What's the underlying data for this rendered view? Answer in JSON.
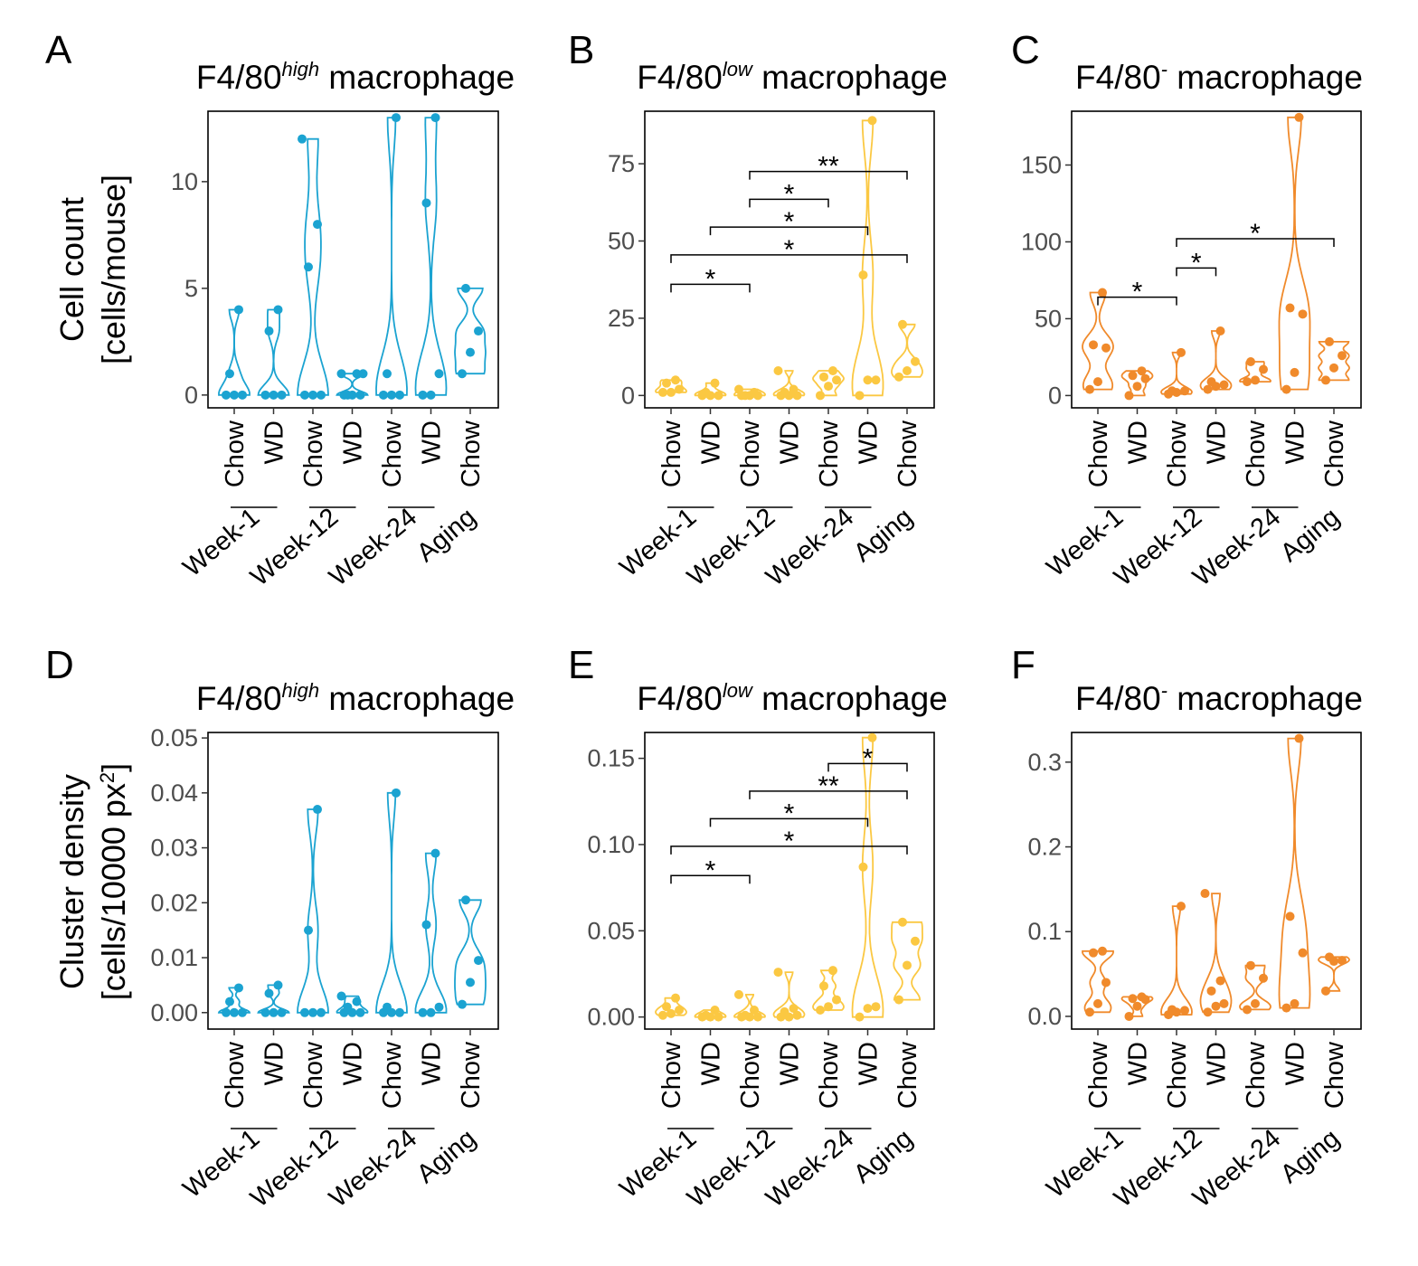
{
  "colors": {
    "A": "#1ba3d1",
    "B": "#fbc842",
    "C": "#f08a2b"
  },
  "x_categories": [
    "Chow",
    "WD",
    "Chow",
    "WD",
    "Chow",
    "WD",
    "Chow"
  ],
  "groups": [
    {
      "label": "Week-1",
      "from": 0,
      "to": 1
    },
    {
      "label": "Week-12",
      "from": 2,
      "to": 3
    },
    {
      "label": "Week-24",
      "from": 4,
      "to": 5
    },
    {
      "label": "Aging",
      "from": 6,
      "to": 6
    }
  ],
  "y_titles": {
    "count": [
      "Cell count",
      "[cells/mouse]"
    ],
    "density_line1": "Cluster density",
    "density_line2_prefix": "[cells/10000 px",
    "density_line2_sup": "2",
    "density_line2_suffix": "]"
  },
  "chart_data": [
    {
      "panel": "A",
      "type": "violin",
      "color_key": "A",
      "title": {
        "prefix": "F4/80",
        "sup": "high",
        "suffix": " macrophage"
      },
      "ylim": [
        -0.6,
        13.3
      ],
      "yticks": [
        0,
        5,
        10
      ],
      "ytick_labels": [
        "0",
        "5",
        "10"
      ],
      "series": [
        {
          "category": "Chow",
          "group": "Week-1",
          "points": [
            0,
            0,
            0,
            1,
            4
          ]
        },
        {
          "category": "WD",
          "group": "Week-1",
          "points": [
            0,
            0,
            0,
            3,
            4
          ]
        },
        {
          "category": "Chow",
          "group": "Week-12",
          "points": [
            0,
            0,
            0,
            6,
            8,
            12
          ]
        },
        {
          "category": "WD",
          "group": "Week-12",
          "points": [
            0,
            0,
            0,
            0,
            1,
            1,
            1
          ]
        },
        {
          "category": "Chow",
          "group": "Week-24",
          "points": [
            0,
            0,
            0,
            1,
            13
          ]
        },
        {
          "category": "WD",
          "group": "Week-24",
          "points": [
            0,
            0,
            1,
            9,
            13
          ]
        },
        {
          "category": "Chow",
          "group": "Aging",
          "points": [
            1,
            2,
            3,
            5
          ]
        }
      ],
      "significance": []
    },
    {
      "panel": "B",
      "type": "violin",
      "color_key": "B",
      "title": {
        "prefix": "F4/80",
        "sup": "low",
        "suffix": " macrophage"
      },
      "ylim": [
        -4,
        92
      ],
      "yticks": [
        0,
        25,
        50,
        75
      ],
      "ytick_labels": [
        "0",
        "25",
        "50",
        "75"
      ],
      "series": [
        {
          "category": "Chow",
          "group": "Week-1",
          "points": [
            1,
            1,
            2,
            4,
            5
          ]
        },
        {
          "category": "WD",
          "group": "Week-1",
          "points": [
            0,
            0,
            0,
            1,
            4
          ]
        },
        {
          "category": "Chow",
          "group": "Week-12",
          "points": [
            0,
            0,
            0,
            0,
            1,
            2
          ]
        },
        {
          "category": "WD",
          "group": "Week-12",
          "points": [
            0,
            0,
            0,
            1,
            2,
            8
          ]
        },
        {
          "category": "Chow",
          "group": "Week-24",
          "points": [
            0,
            3,
            5,
            6,
            8
          ]
        },
        {
          "category": "WD",
          "group": "Week-24",
          "points": [
            0,
            5,
            5,
            39,
            89
          ]
        },
        {
          "category": "Chow",
          "group": "Aging",
          "points": [
            6,
            8,
            11,
            23
          ]
        }
      ],
      "significance": [
        {
          "from": 0,
          "to": 2,
          "y": 36,
          "label": "*"
        },
        {
          "from": 0,
          "to": 6,
          "y": 45.5,
          "label": "*"
        },
        {
          "from": 1,
          "to": 5,
          "y": 54.5,
          "label": "*"
        },
        {
          "from": 2,
          "to": 4,
          "y": 63.5,
          "label": "*"
        },
        {
          "from": 2,
          "to": 6,
          "y": 72.5,
          "label": "**"
        }
      ]
    },
    {
      "panel": "C",
      "type": "violin",
      "color_key": "C",
      "title": {
        "prefix": "F4/80",
        "sup": "-",
        "suffix": " macrophage"
      },
      "ylim": [
        -8,
        185
      ],
      "yticks": [
        0,
        50,
        100,
        150
      ],
      "ytick_labels": [
        "0",
        "50",
        "100",
        "150"
      ],
      "series": [
        {
          "category": "Chow",
          "group": "Week-1",
          "points": [
            4,
            9,
            31,
            33,
            67
          ]
        },
        {
          "category": "WD",
          "group": "Week-1",
          "points": [
            0,
            6,
            11,
            13,
            16
          ]
        },
        {
          "category": "Chow",
          "group": "Week-12",
          "points": [
            1,
            2,
            3,
            3,
            28
          ]
        },
        {
          "category": "WD",
          "group": "Week-12",
          "points": [
            4,
            6,
            7,
            9,
            42
          ]
        },
        {
          "category": "Chow",
          "group": "Week-24",
          "points": [
            9,
            10,
            17,
            22
          ]
        },
        {
          "category": "WD",
          "group": "Week-24",
          "points": [
            4,
            15,
            53,
            57,
            181
          ]
        },
        {
          "category": "Chow",
          "group": "Aging",
          "points": [
            10,
            18,
            26,
            35
          ]
        }
      ],
      "significance": [
        {
          "from": 0,
          "to": 2,
          "y": 64,
          "label": "*"
        },
        {
          "from": 2,
          "to": 3,
          "y": 83,
          "label": "*"
        },
        {
          "from": 2,
          "to": 6,
          "y": 102,
          "label": "*"
        }
      ]
    },
    {
      "panel": "D",
      "type": "violin",
      "color_key": "A",
      "title": {
        "prefix": "F4/80",
        "sup": "high",
        "suffix": " macrophage"
      },
      "ylim": [
        -0.003,
        0.051
      ],
      "yticks": [
        0,
        0.01,
        0.02,
        0.03,
        0.04,
        0.05
      ],
      "ytick_labels": [
        "0.00",
        "0.01",
        "0.02",
        "0.03",
        "0.04",
        "0.05"
      ],
      "series": [
        {
          "category": "Chow",
          "group": "Week-1",
          "points": [
            0,
            0,
            0,
            0.002,
            0.0045
          ]
        },
        {
          "category": "WD",
          "group": "Week-1",
          "points": [
            0,
            0,
            0,
            0.0035,
            0.005
          ]
        },
        {
          "category": "Chow",
          "group": "Week-12",
          "points": [
            0,
            0,
            0,
            0.015,
            0.037
          ]
        },
        {
          "category": "WD",
          "group": "Week-12",
          "points": [
            0,
            0,
            0,
            0.001,
            0.002,
            0.003
          ]
        },
        {
          "category": "Chow",
          "group": "Week-24",
          "points": [
            0,
            0,
            0,
            0.001,
            0.04
          ]
        },
        {
          "category": "WD",
          "group": "Week-24",
          "points": [
            0,
            0,
            0.001,
            0.016,
            0.029
          ]
        },
        {
          "category": "Chow",
          "group": "Aging",
          "points": [
            0.0015,
            0.0055,
            0.0095,
            0.0205
          ]
        }
      ],
      "significance": []
    },
    {
      "panel": "E",
      "type": "violin",
      "color_key": "B",
      "title": {
        "prefix": "F4/80",
        "sup": "low",
        "suffix": " macrophage"
      },
      "ylim": [
        -0.007,
        0.165
      ],
      "yticks": [
        0,
        0.05,
        0.1,
        0.15
      ],
      "ytick_labels": [
        "0.00",
        "0.05",
        "0.10",
        "0.15"
      ],
      "series": [
        {
          "category": "Chow",
          "group": "Week-1",
          "points": [
            0.001,
            0.002,
            0.004,
            0.006,
            0.011
          ]
        },
        {
          "category": "WD",
          "group": "Week-1",
          "points": [
            0,
            0,
            0,
            0.001,
            0.004
          ]
        },
        {
          "category": "Chow",
          "group": "Week-12",
          "points": [
            0,
            0,
            0,
            0.001,
            0.004,
            0.013
          ]
        },
        {
          "category": "WD",
          "group": "Week-12",
          "points": [
            0,
            0,
            0.001,
            0.003,
            0.005,
            0.026
          ]
        },
        {
          "category": "Chow",
          "group": "Week-24",
          "points": [
            0.004,
            0.006,
            0.01,
            0.018,
            0.027
          ]
        },
        {
          "category": "WD",
          "group": "Week-24",
          "points": [
            0,
            0.005,
            0.006,
            0.087,
            0.162
          ]
        },
        {
          "category": "Chow",
          "group": "Aging",
          "points": [
            0.01,
            0.03,
            0.044,
            0.055
          ]
        }
      ],
      "significance": [
        {
          "from": 0,
          "to": 2,
          "y": 0.082,
          "label": "*"
        },
        {
          "from": 0,
          "to": 6,
          "y": 0.099,
          "label": "*"
        },
        {
          "from": 1,
          "to": 5,
          "y": 0.115,
          "label": "*"
        },
        {
          "from": 2,
          "to": 6,
          "y": 0.131,
          "label": "**"
        },
        {
          "from": 4,
          "to": 6,
          "y": 0.147,
          "label": "*"
        }
      ]
    },
    {
      "panel": "F",
      "type": "violin",
      "color_key": "C",
      "title": {
        "prefix": "F4/80",
        "sup": "-",
        "suffix": " macrophage"
      },
      "ylim": [
        -0.015,
        0.335
      ],
      "yticks": [
        0,
        0.1,
        0.2,
        0.3
      ],
      "ytick_labels": [
        "0.0",
        "0.1",
        "0.2",
        "0.3"
      ],
      "series": [
        {
          "category": "Chow",
          "group": "Week-1",
          "points": [
            0.005,
            0.015,
            0.04,
            0.075,
            0.077
          ]
        },
        {
          "category": "WD",
          "group": "Week-1",
          "points": [
            0,
            0.012,
            0.02,
            0.021,
            0.023
          ]
        },
        {
          "category": "Chow",
          "group": "Week-12",
          "points": [
            0.002,
            0.005,
            0.007,
            0.008,
            0.13
          ]
        },
        {
          "category": "WD",
          "group": "Week-12",
          "points": [
            0.005,
            0.012,
            0.015,
            0.03,
            0.042,
            0.145
          ]
        },
        {
          "category": "Chow",
          "group": "Week-24",
          "points": [
            0.008,
            0.015,
            0.045,
            0.06
          ]
        },
        {
          "category": "WD",
          "group": "Week-24",
          "points": [
            0.01,
            0.015,
            0.075,
            0.118,
            0.328
          ]
        },
        {
          "category": "Chow",
          "group": "Aging",
          "points": [
            0.03,
            0.065,
            0.066,
            0.07
          ]
        }
      ],
      "significance": []
    }
  ]
}
